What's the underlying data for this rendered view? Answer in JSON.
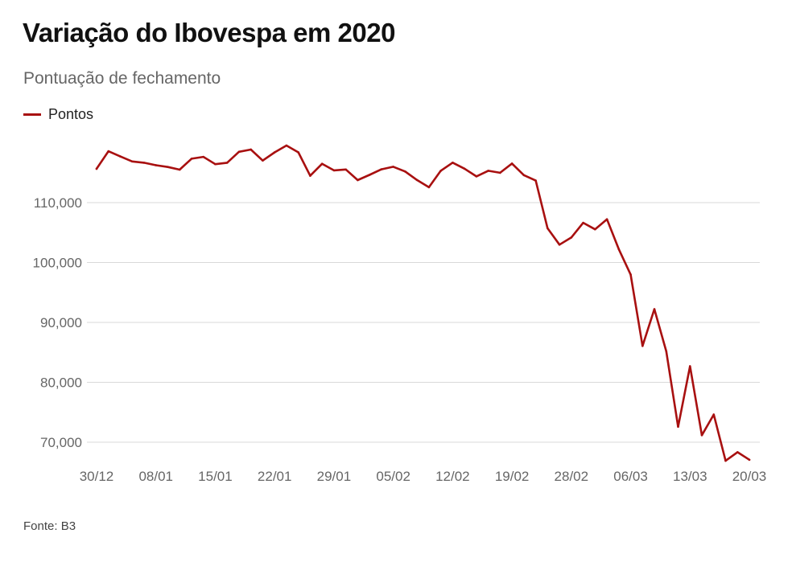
{
  "title": "Variação do Ibovespa em 2020",
  "subtitle": "Pontuação de fechamento",
  "source": "Fonte: B3",
  "colors": {
    "line": "#a81010",
    "grid": "#d9d9d9",
    "tick_text": "#666666"
  },
  "chart_data": {
    "type": "line",
    "title": "Variação do Ibovespa em 2020",
    "subtitle": "Pontuação de fechamento",
    "xlabel": "",
    "ylabel": "",
    "ylim": [
      66000,
      120000
    ],
    "yticks": [
      70000,
      80000,
      90000,
      100000,
      110000
    ],
    "ytick_labels": [
      "70,000",
      "80,000",
      "90,000",
      "100,000",
      "110,000"
    ],
    "xtick_labels": [
      "30/12",
      "08/01",
      "15/01",
      "22/01",
      "29/01",
      "05/02",
      "12/02",
      "19/02",
      "28/02",
      "06/03",
      "13/03",
      "20/03"
    ],
    "xtick_index": [
      0,
      5,
      10,
      15,
      20,
      25,
      30,
      35,
      40,
      45,
      50,
      55
    ],
    "grid": true,
    "legend": "top-left",
    "series": [
      {
        "name": "Pontos",
        "values": [
          115645,
          118573,
          117707,
          116878,
          116662,
          116247,
          115947,
          115503,
          117325,
          117632,
          116414,
          116661,
          118478,
          118861,
          117026,
          118392,
          119528,
          118391,
          114482,
          116481,
          115385,
          115528,
          113761,
          114630,
          115557,
          115991,
          115190,
          113770,
          112570,
          115309,
          116674,
          115663,
          114381,
          115309,
          114977,
          116518,
          114586,
          113681,
          105718,
          102984,
          104172,
          106625,
          105537,
          107224,
          102233,
          97997,
          86067,
          92214,
          85171,
          72583,
          82678,
          71168,
          74617,
          66895,
          68332,
          67069
        ]
      }
    ]
  }
}
